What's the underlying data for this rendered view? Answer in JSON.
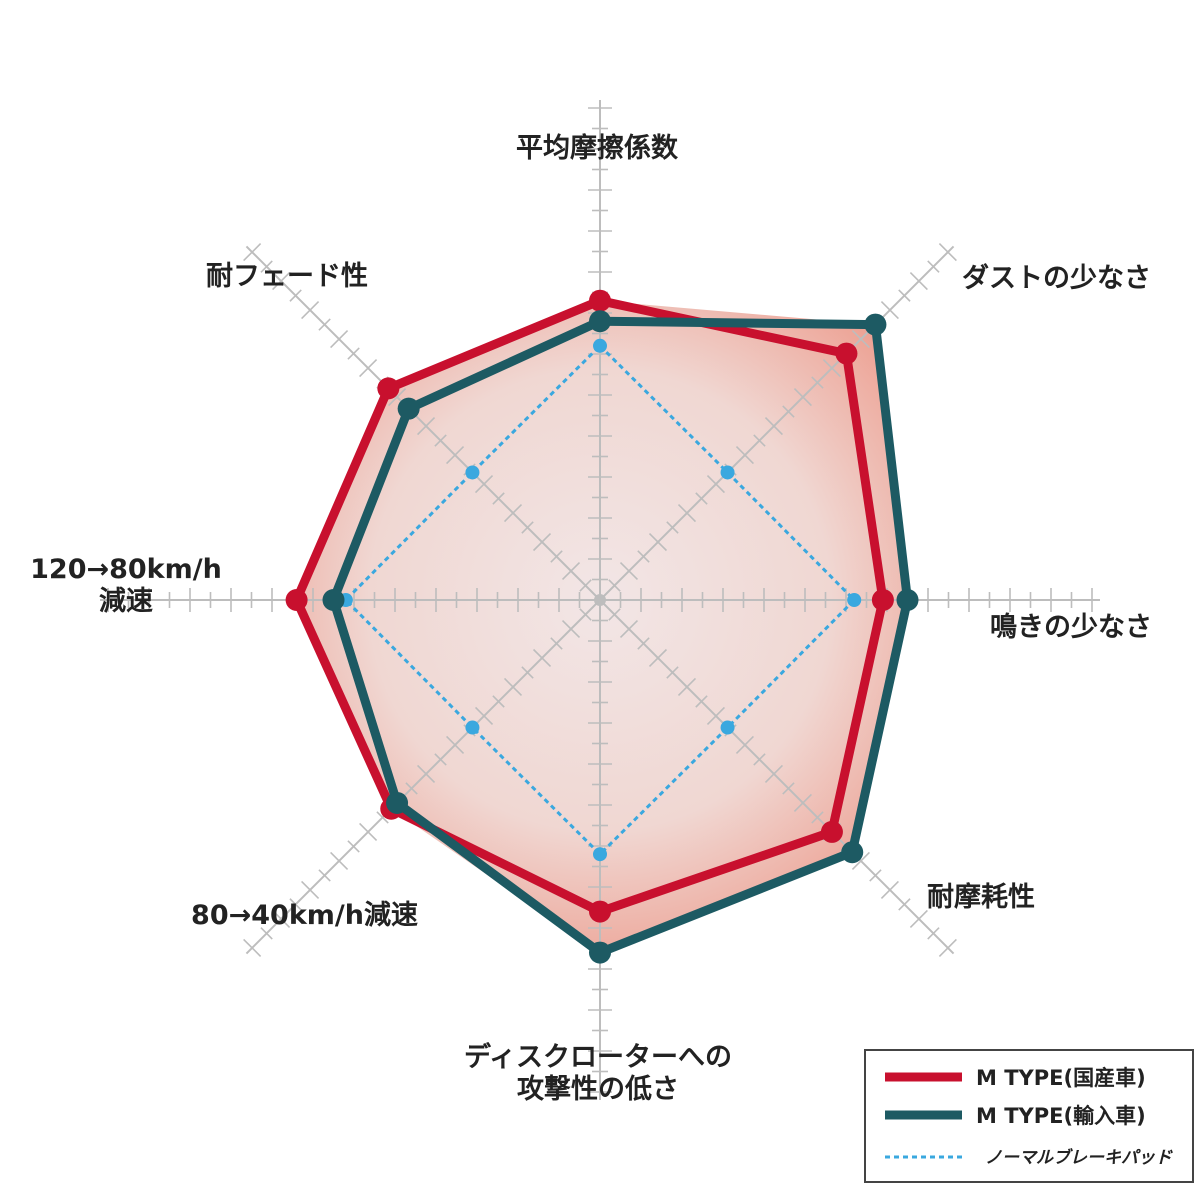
{
  "chart_data": {
    "type": "radar",
    "scale": {
      "min": 0,
      "max": 10,
      "tick_step": 0.5
    },
    "axes": [
      {
        "id": "avg-friction",
        "lines": [
          "平均摩擦係数"
        ]
      },
      {
        "id": "low-dust",
        "lines": [
          "ダストの少なさ"
        ]
      },
      {
        "id": "low-noise",
        "lines": [
          "鳴きの少なさ"
        ]
      },
      {
        "id": "wear-resistance",
        "lines": [
          "耐摩耗性"
        ]
      },
      {
        "id": "low-rotor-aggression",
        "lines": [
          "ディスクローターへの",
          "攻撃性の低さ"
        ]
      },
      {
        "id": "decel-80-40",
        "lines": [
          "80→40km/h減速"
        ]
      },
      {
        "id": "decel-120-80",
        "lines": [
          "120→80km/h",
          "減速"
        ]
      },
      {
        "id": "fade-resistance",
        "lines": [
          "耐フェード性"
        ]
      }
    ],
    "series": [
      {
        "name": "M TYPE(国産車)",
        "color": "#c8102e",
        "style": "solid",
        "values": [
          7.3,
          8.5,
          6.9,
          8.0,
          7.6,
          7.2,
          7.4,
          7.3
        ]
      },
      {
        "name": "M TYPE(輸入車)",
        "color": "#1d5a63",
        "style": "solid",
        "values": [
          6.8,
          9.5,
          7.5,
          8.7,
          8.6,
          7.0,
          6.5,
          6.6
        ]
      },
      {
        "name": "ノーマルブレーキパッド",
        "color": "#3aa8df",
        "style": "dashed",
        "values": [
          6.2,
          4.4,
          6.2,
          4.4,
          6.2,
          4.4,
          6.2,
          4.4
        ]
      }
    ],
    "fill_color": "#ee9988",
    "grid_color": "#bdbdbd"
  },
  "legend": {
    "items": [
      {
        "label": "M TYPE(国産車)",
        "color": "#c8102e",
        "style": "solid"
      },
      {
        "label": "M TYPE(輸入車)",
        "color": "#1d5a63",
        "style": "solid"
      },
      {
        "label": "ノーマルブレーキパッド",
        "color": "#3aa8df",
        "style": "dashed"
      }
    ]
  }
}
